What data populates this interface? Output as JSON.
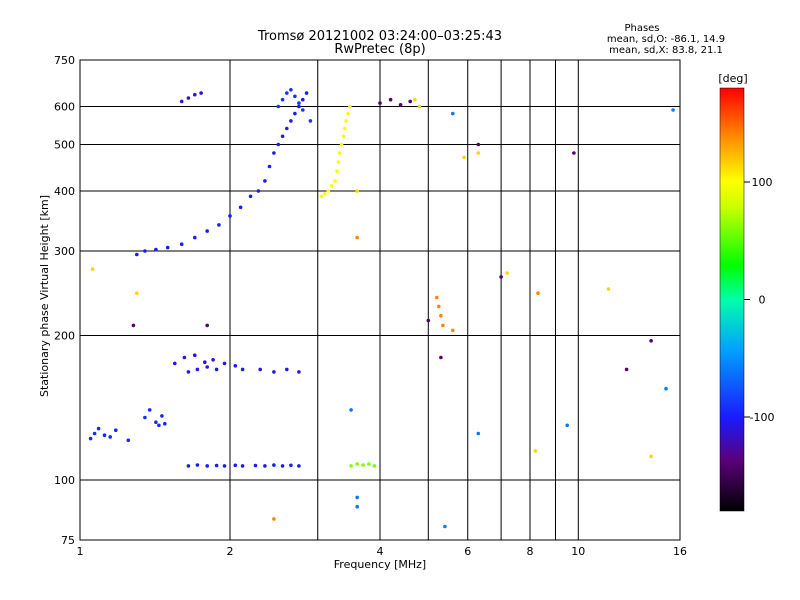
{
  "chart_data": {
    "type": "scatter",
    "title": "Tromsø 20121002 03:24:00–03:25:43",
    "subtitle": "RwPretec (8p)",
    "stats": {
      "heading": "Phases",
      "line1": "mean, sd,O: -86.1, 14.9",
      "line2": "mean, sd,X: 83.8, 21.1"
    },
    "xlabel": "Frequency [MHz]",
    "ylabel": "Stationary phase Virtual Height [km]",
    "x_scale": "log",
    "y_scale": "log",
    "xlim": [
      1,
      16
    ],
    "ylim": [
      75,
      750
    ],
    "x_ticks": [
      1,
      2,
      4,
      6,
      8,
      10,
      16
    ],
    "x_grid": [
      2,
      3,
      4,
      5,
      6,
      7,
      8,
      9,
      10
    ],
    "y_ticks": [
      75,
      100,
      200,
      300,
      400,
      500,
      600,
      750
    ],
    "y_grid": [
      100,
      200,
      300,
      400,
      500,
      600
    ],
    "grid": true,
    "colorbar": {
      "label": "[deg]",
      "range": [
        -180,
        180
      ],
      "ticks": [
        100,
        0,
        -100
      ]
    },
    "series": [
      {
        "phase": -95,
        "points": [
          [
            1.05,
            122
          ],
          [
            1.07,
            125
          ],
          [
            1.09,
            128
          ],
          [
            1.12,
            124
          ],
          [
            1.15,
            123
          ],
          [
            1.18,
            127
          ],
          [
            1.25,
            121
          ],
          [
            1.35,
            135
          ],
          [
            1.38,
            140
          ],
          [
            1.42,
            132
          ],
          [
            1.44,
            130
          ],
          [
            1.46,
            136
          ],
          [
            1.48,
            131
          ]
        ]
      },
      {
        "phase": -100,
        "points": [
          [
            1.65,
            107
          ],
          [
            1.72,
            107.5
          ],
          [
            1.8,
            107
          ],
          [
            1.88,
            107.2
          ],
          [
            1.95,
            107
          ],
          [
            2.05,
            107.3
          ],
          [
            2.12,
            107
          ],
          [
            2.25,
            107.2
          ],
          [
            2.35,
            107
          ],
          [
            2.45,
            107.4
          ],
          [
            2.55,
            107
          ],
          [
            2.65,
            107.3
          ],
          [
            2.75,
            107
          ]
        ]
      },
      {
        "phase": -105,
        "points": [
          [
            1.65,
            168
          ],
          [
            1.72,
            170
          ],
          [
            1.8,
            172
          ],
          [
            1.88,
            170
          ],
          [
            1.95,
            175
          ],
          [
            2.05,
            173
          ],
          [
            2.12,
            170
          ],
          [
            2.3,
            170
          ],
          [
            2.45,
            168
          ],
          [
            2.6,
            170
          ],
          [
            2.75,
            168
          ]
        ]
      },
      {
        "phase": -110,
        "points": [
          [
            1.55,
            175
          ],
          [
            1.62,
            180
          ],
          [
            1.7,
            182
          ],
          [
            1.78,
            176
          ],
          [
            1.85,
            178
          ]
        ]
      },
      {
        "phase": -100,
        "points": [
          [
            1.3,
            295
          ],
          [
            1.35,
            300
          ],
          [
            1.42,
            302
          ],
          [
            1.5,
            305
          ],
          [
            1.6,
            310
          ],
          [
            1.7,
            320
          ],
          [
            1.8,
            330
          ],
          [
            1.9,
            340
          ],
          [
            2.0,
            355
          ],
          [
            2.1,
            370
          ],
          [
            2.2,
            390
          ],
          [
            2.28,
            400
          ],
          [
            2.35,
            420
          ],
          [
            2.4,
            450
          ],
          [
            2.45,
            480
          ],
          [
            2.5,
            500
          ],
          [
            2.55,
            520
          ],
          [
            2.6,
            540
          ],
          [
            2.65,
            560
          ],
          [
            2.7,
            580
          ],
          [
            2.75,
            600
          ],
          [
            2.8,
            620
          ],
          [
            2.85,
            640
          ]
        ]
      },
      {
        "phase": -90,
        "points": [
          [
            2.5,
            600
          ],
          [
            2.55,
            620
          ],
          [
            2.6,
            640
          ],
          [
            2.65,
            650
          ],
          [
            2.7,
            630
          ],
          [
            2.75,
            610
          ],
          [
            2.8,
            590
          ],
          [
            2.9,
            560
          ]
        ]
      },
      {
        "phase": -110,
        "points": [
          [
            1.6,
            615
          ],
          [
            1.65,
            625
          ],
          [
            1.7,
            635
          ],
          [
            1.75,
            640
          ]
        ]
      },
      {
        "phase": 100,
        "points": [
          [
            3.05,
            390
          ],
          [
            3.1,
            395
          ],
          [
            3.15,
            400
          ],
          [
            3.2,
            410
          ],
          [
            3.25,
            420
          ],
          [
            3.28,
            440
          ],
          [
            3.3,
            460
          ],
          [
            3.32,
            480
          ],
          [
            3.35,
            500
          ],
          [
            3.38,
            520
          ],
          [
            3.4,
            540
          ],
          [
            3.42,
            560
          ],
          [
            3.45,
            580
          ],
          [
            3.48,
            600
          ]
        ]
      },
      {
        "phase": 60,
        "points": [
          [
            3.5,
            107
          ],
          [
            3.6,
            108
          ],
          [
            3.7,
            107.5
          ],
          [
            3.8,
            108
          ],
          [
            3.9,
            107
          ]
        ]
      },
      {
        "phase": 140,
        "points": [
          [
            5.2,
            240
          ],
          [
            5.25,
            230
          ],
          [
            5.3,
            220
          ],
          [
            5.35,
            210
          ],
          [
            2.45,
            83
          ],
          [
            3.6,
            320
          ],
          [
            5.6,
            205
          ],
          [
            8.3,
            245
          ]
        ]
      },
      {
        "phase": -140,
        "points": [
          [
            4.0,
            610
          ],
          [
            4.2,
            620
          ],
          [
            4.4,
            605
          ],
          [
            4.6,
            615
          ],
          [
            5.0,
            215
          ],
          [
            6.3,
            500
          ],
          [
            7.0,
            265
          ],
          [
            9.8,
            480
          ],
          [
            14.0,
            195
          ],
          [
            12.5,
            170
          ],
          [
            5.3,
            180
          ],
          [
            1.8,
            210
          ],
          [
            1.28,
            210
          ]
        ]
      },
      {
        "phase": 115,
        "points": [
          [
            4.7,
            620
          ],
          [
            4.8,
            600
          ],
          [
            1.06,
            275
          ],
          [
            1.3,
            245
          ],
          [
            3.6,
            400
          ],
          [
            5.9,
            470
          ],
          [
            6.3,
            480
          ],
          [
            7.2,
            270
          ],
          [
            11.5,
            250
          ],
          [
            8.2,
            115
          ],
          [
            14.0,
            112
          ]
        ]
      },
      {
        "phase": -60,
        "points": [
          [
            5.6,
            580
          ],
          [
            3.6,
            92
          ],
          [
            3.6,
            88
          ],
          [
            5.4,
            80
          ],
          [
            15.0,
            155
          ],
          [
            6.3,
            125
          ],
          [
            9.5,
            130
          ],
          [
            15.5,
            590
          ],
          [
            3.5,
            140
          ]
        ]
      }
    ]
  }
}
